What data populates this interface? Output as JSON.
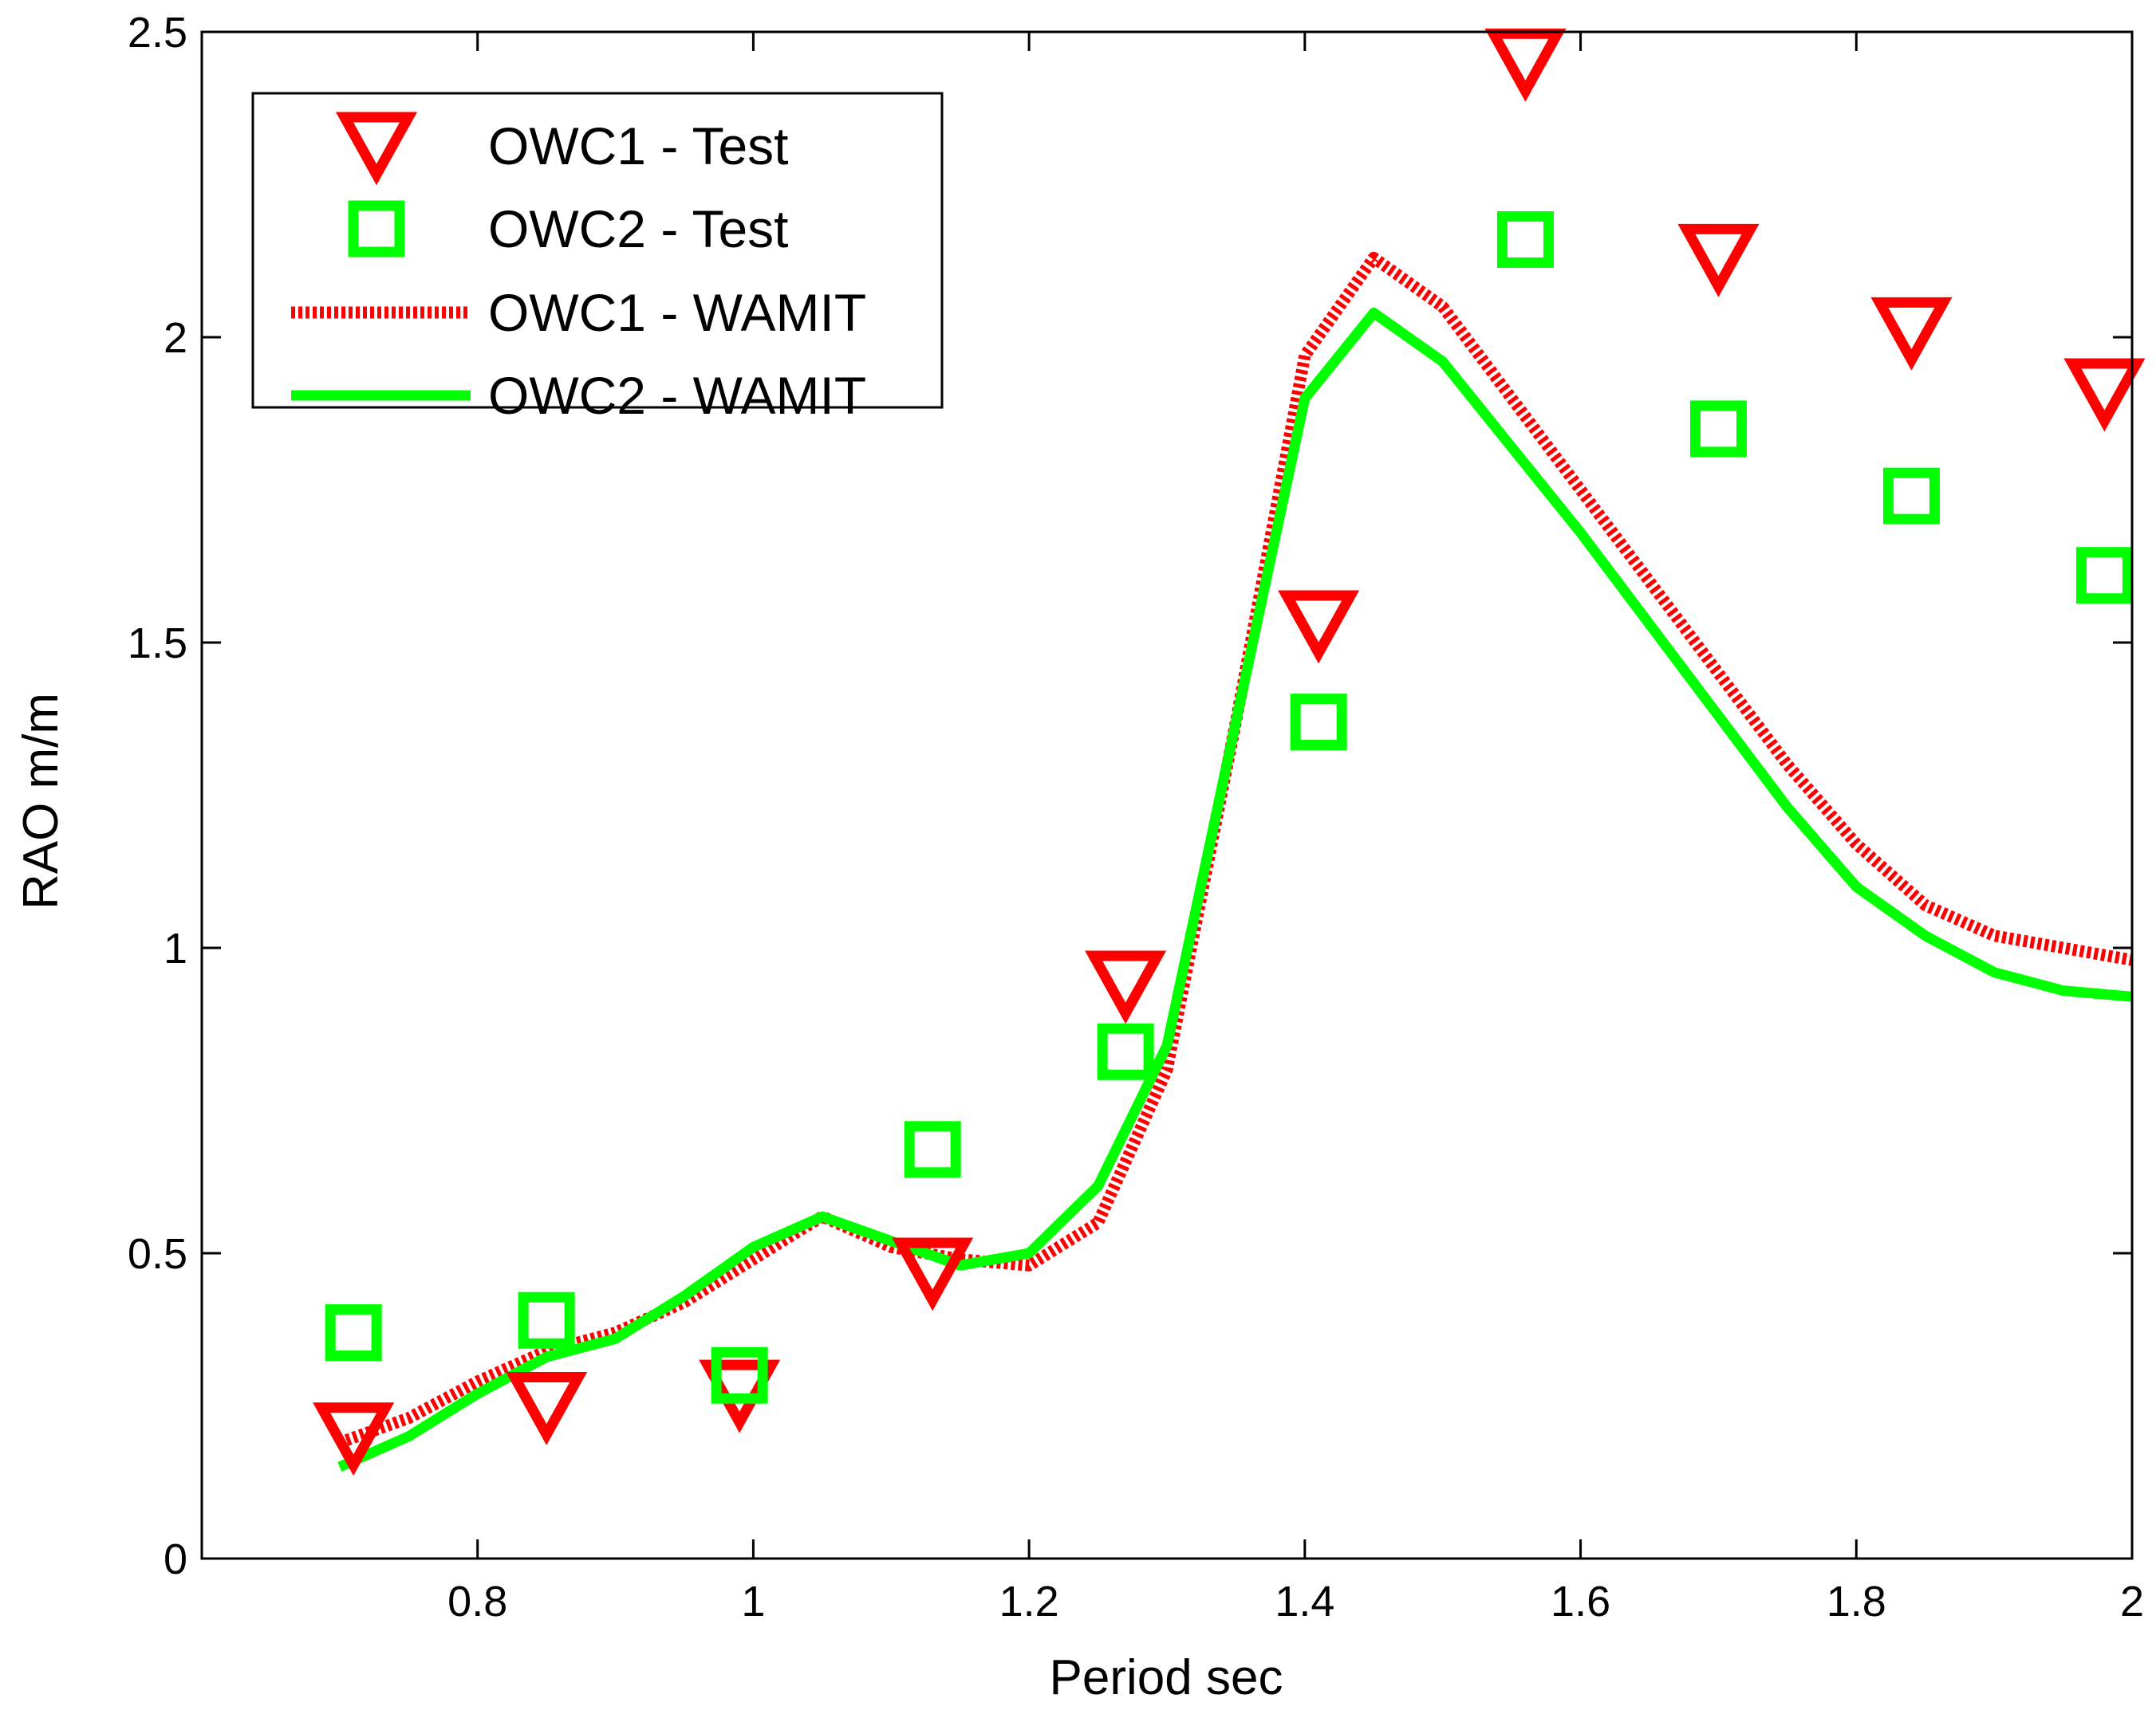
{
  "chart_data": {
    "type": "line",
    "title": "",
    "xlabel": "Period sec",
    "ylabel": "RAO m/m",
    "xlim": [
      0.6,
      2.0
    ],
    "ylim": [
      0,
      2.5
    ],
    "xticks": [
      0.8,
      1.0,
      1.2,
      1.4,
      1.6,
      1.8,
      2.0
    ],
    "xtick_labels": [
      "0.8",
      "1",
      "1.2",
      "1.4",
      "1.6",
      "1.8",
      "2"
    ],
    "yticks": [
      0,
      0.5,
      1.0,
      1.5,
      2.0,
      2.5
    ],
    "ytick_labels": [
      "0",
      "0.5",
      "1",
      "1.5",
      "2",
      "2.5"
    ],
    "grid": false,
    "legend_position": "top-left",
    "colors": {
      "owc1": "#ff0000",
      "owc2": "#00ff00",
      "axis": "#000000"
    },
    "series": [
      {
        "name": "OWC1 - Test",
        "kind": "markers",
        "marker": "triangle-down",
        "color": "#ff0000",
        "x": [
          0.71,
          0.85,
          0.99,
          1.13,
          1.27,
          1.41,
          1.56,
          1.7,
          1.84,
          1.98
        ],
        "y": [
          0.2,
          0.25,
          0.27,
          0.47,
          0.94,
          1.53,
          2.45,
          2.13,
          2.01,
          1.91
        ]
      },
      {
        "name": "OWC2 - Test",
        "kind": "markers",
        "marker": "square",
        "color": "#00ff00",
        "x": [
          0.71,
          0.85,
          0.99,
          1.13,
          1.27,
          1.41,
          1.56,
          1.7,
          1.84,
          1.98
        ],
        "y": [
          0.37,
          0.39,
          0.3,
          0.67,
          0.83,
          1.37,
          2.16,
          1.85,
          1.74,
          1.61
        ]
      },
      {
        "name": "OWC1 - WAMIT",
        "kind": "line",
        "style": "dotted",
        "color": "#ff0000",
        "x": [
          0.7,
          0.75,
          0.8,
          0.85,
          0.9,
          0.95,
          1.0,
          1.05,
          1.1,
          1.15,
          1.2,
          1.25,
          1.3,
          1.35,
          1.4,
          1.45,
          1.5,
          1.55,
          1.6,
          1.65,
          1.7,
          1.75,
          1.8,
          1.85,
          1.9,
          1.95,
          2.0
        ],
        "y": [
          0.19,
          0.23,
          0.29,
          0.34,
          0.37,
          0.42,
          0.49,
          0.56,
          0.51,
          0.49,
          0.48,
          0.55,
          0.8,
          1.37,
          1.97,
          2.13,
          2.05,
          1.9,
          1.75,
          1.6,
          1.45,
          1.3,
          1.17,
          1.07,
          1.02,
          1.0,
          0.98
        ]
      },
      {
        "name": "OWC2 - WAMIT",
        "kind": "line",
        "style": "solid",
        "color": "#00ff00",
        "x": [
          0.7,
          0.75,
          0.8,
          0.85,
          0.9,
          0.95,
          1.0,
          1.05,
          1.1,
          1.15,
          1.2,
          1.25,
          1.3,
          1.35,
          1.4,
          1.45,
          1.5,
          1.55,
          1.6,
          1.65,
          1.7,
          1.75,
          1.8,
          1.85,
          1.9,
          1.95,
          2.0
        ],
        "y": [
          0.15,
          0.2,
          0.27,
          0.33,
          0.36,
          0.43,
          0.51,
          0.56,
          0.52,
          0.48,
          0.5,
          0.61,
          0.84,
          1.37,
          1.9,
          2.04,
          1.96,
          1.82,
          1.68,
          1.53,
          1.38,
          1.23,
          1.1,
          1.02,
          0.96,
          0.93,
          0.92
        ]
      }
    ]
  }
}
